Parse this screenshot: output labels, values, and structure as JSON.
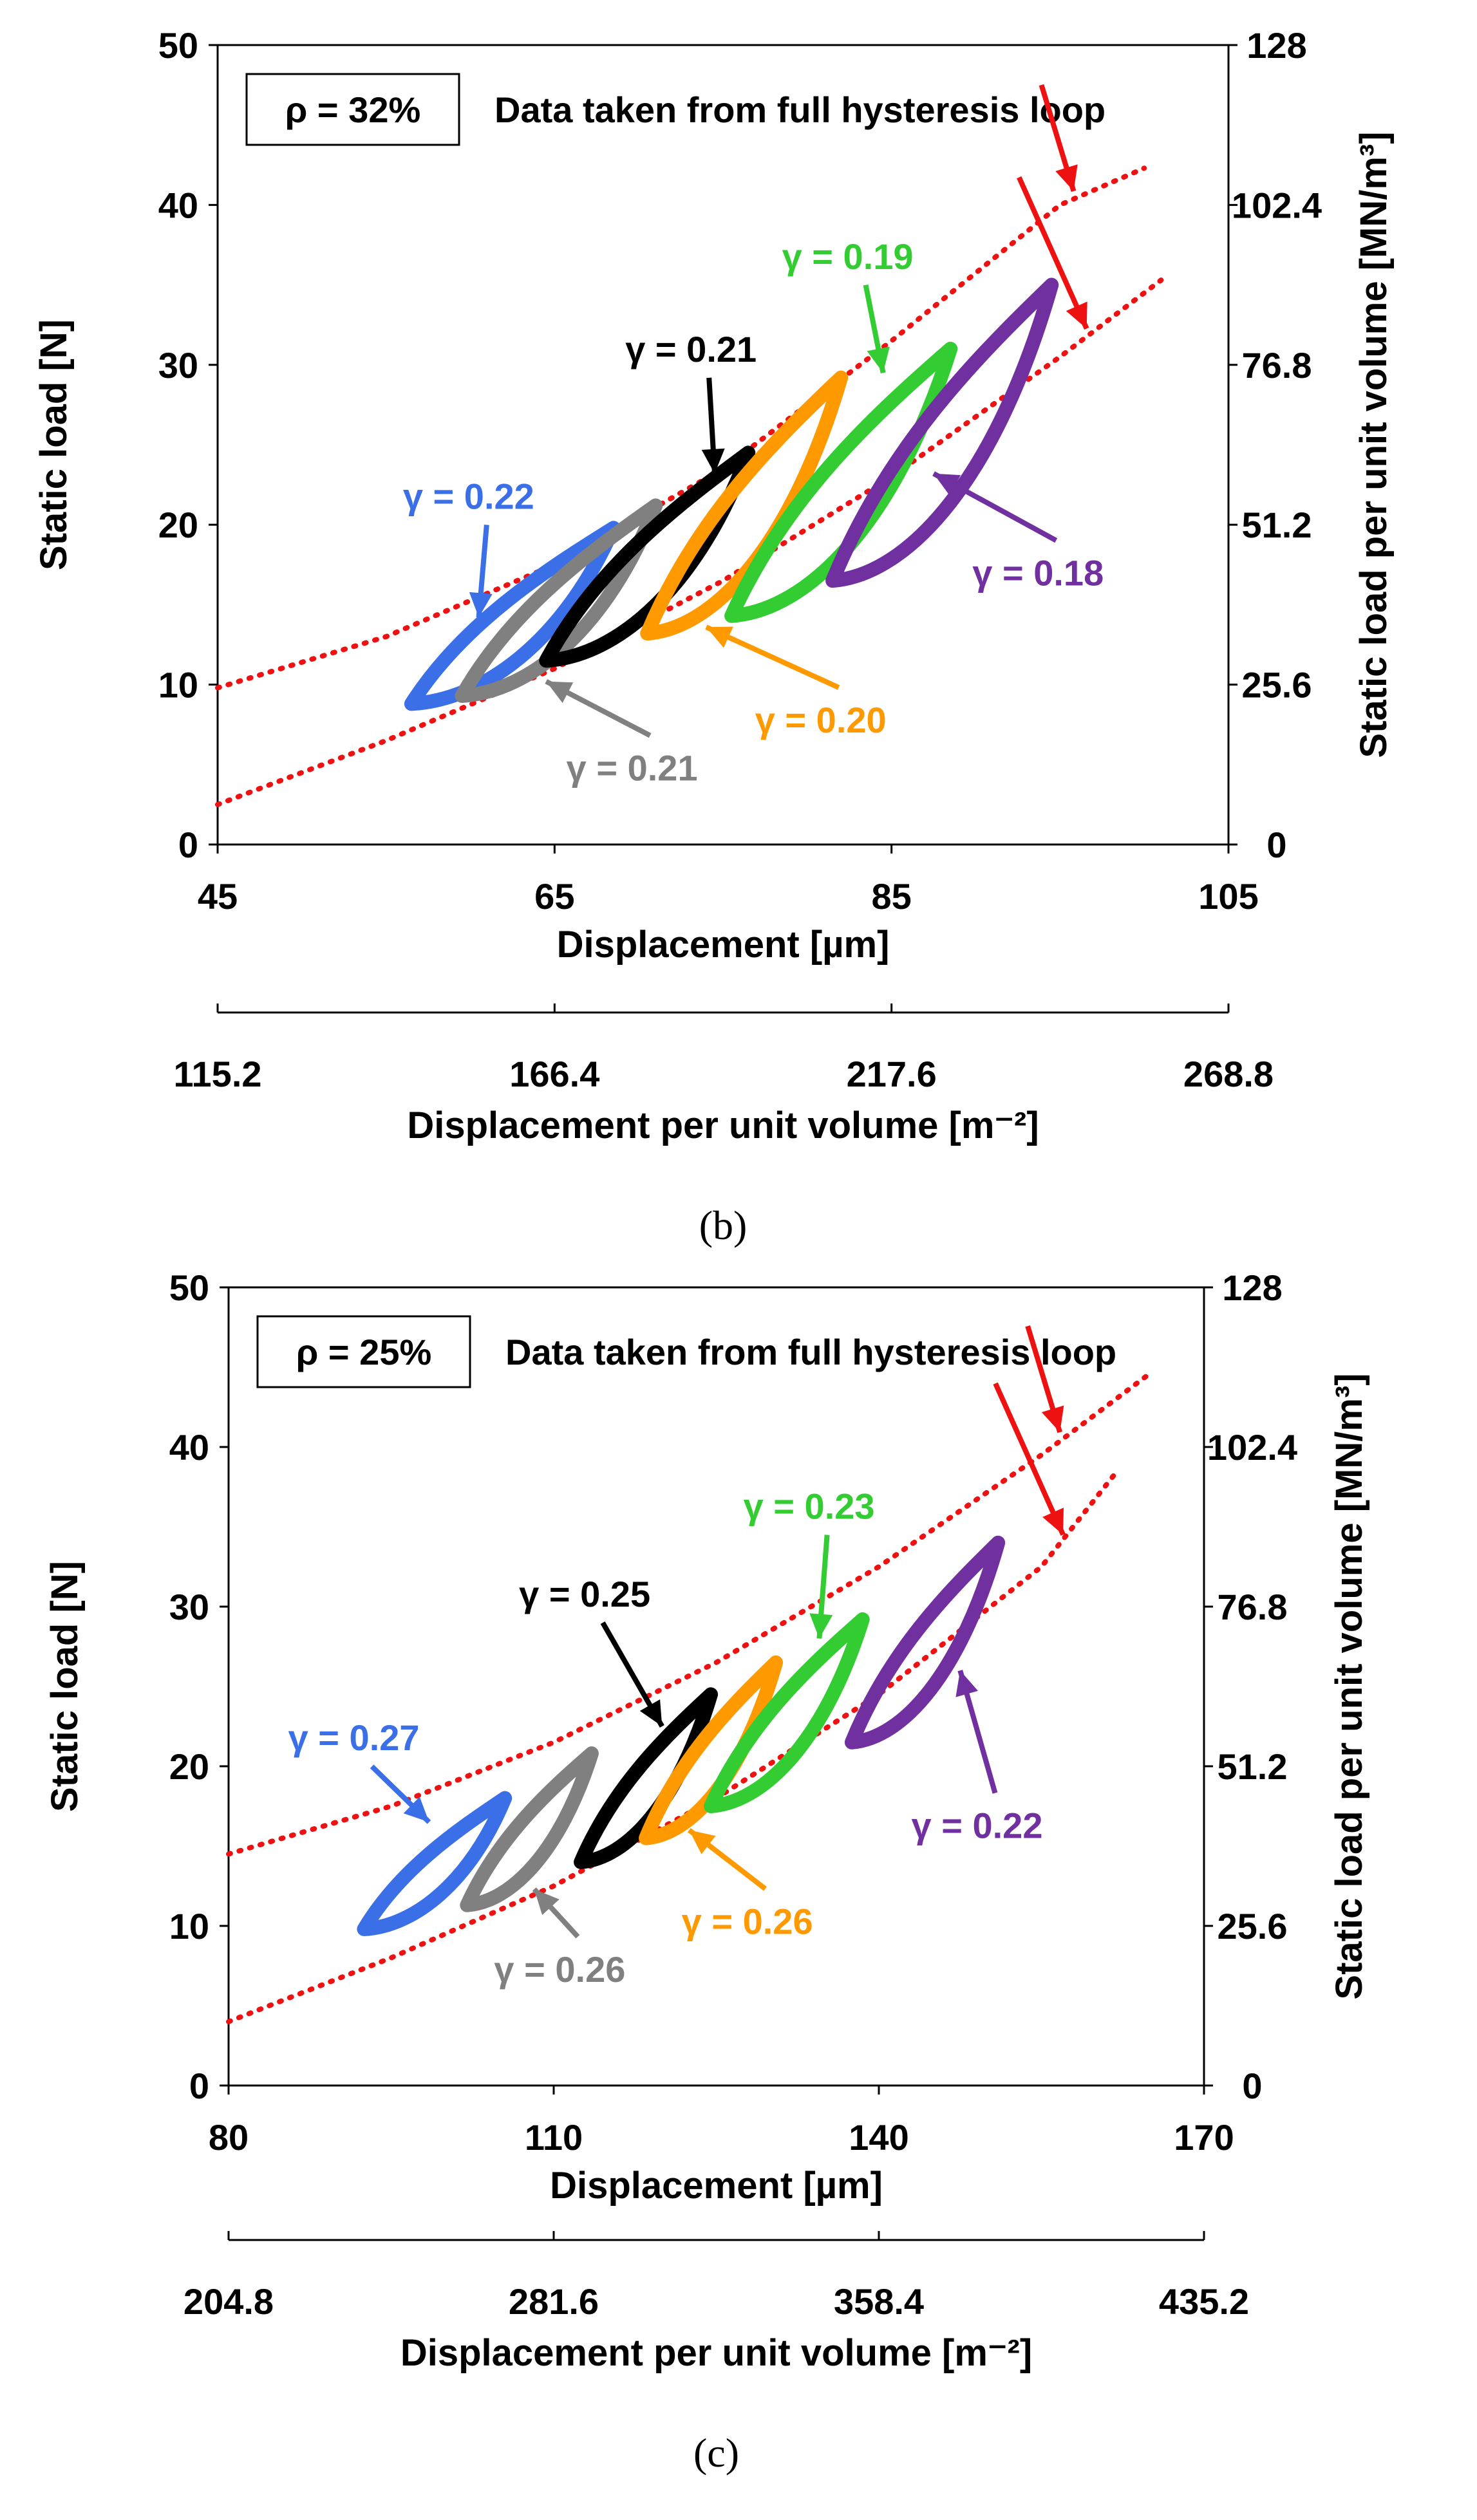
{
  "chart_data": [
    {
      "type": "scatter",
      "panel_label": "(b)",
      "porosity_label": "ρ = 32%",
      "note": "Data taken from full hysteresis loop",
      "xlabel": "Displacement [µm]",
      "ylabel": "Static load [N]",
      "y2label": "Static load per unit volume [MN/m³]",
      "x2label": "Displacement per unit volume [m⁻²]",
      "xlim": [
        45,
        105
      ],
      "ylim": [
        0,
        50
      ],
      "xticks": [
        "45",
        "65",
        "85",
        "105"
      ],
      "yticks": [
        "0",
        "10",
        "20",
        "30",
        "40",
        "50"
      ],
      "y2ticks": [
        "0",
        "25.6",
        "51.2",
        "76.8",
        "102.4",
        "128"
      ],
      "x2ticks": [
        {
          "label": "115.2",
          "x": 45
        },
        {
          "label": "166.4",
          "x": 65
        },
        {
          "label": "217.6",
          "x": 85
        },
        {
          "label": "268.8",
          "x": 105
        }
      ],
      "bound_curves": [
        {
          "name": "upper bound",
          "x": [
            45,
            55,
            65,
            75,
            85,
            95,
            100
          ],
          "y": [
            9.8,
            13.0,
            17.5,
            23.5,
            31.5,
            40.0,
            42.3
          ]
        },
        {
          "name": "lower bound",
          "x": [
            45,
            55,
            65,
            75,
            85,
            95,
            101
          ],
          "y": [
            2.5,
            6.5,
            11.0,
            16.5,
            23.0,
            30.5,
            35.3
          ]
        }
      ],
      "series": [
        {
          "name": "γ = 0.22",
          "color": "#3b6fe8",
          "label": "γ = 0.22",
          "x_range": [
            56.5,
            68.5
          ],
          "y_range": [
            8.8,
            19.8
          ],
          "label_pos": [
            56,
            21
          ],
          "arrow_to": [
            60.5,
            14.2
          ]
        },
        {
          "name": "γ = 0.21 (grey)",
          "color": "#808080",
          "label": "γ = 0.21",
          "x_range": [
            59.5,
            71.0
          ],
          "y_range": [
            9.3,
            21.2
          ],
          "label_pos": [
            65.7,
            4.0
          ],
          "arrow_to": [
            64.5,
            10.2
          ]
        },
        {
          "name": "γ = 0.21 (black)",
          "color": "#000000",
          "label": "γ = 0.21",
          "x_range": [
            64.5,
            76.5
          ],
          "y_range": [
            11.5,
            24.5
          ],
          "label_pos": [
            69.2,
            30.2
          ],
          "arrow_to": [
            74.5,
            23.2
          ]
        },
        {
          "name": "γ = 0.20",
          "color": "#ff9900",
          "label": "γ = 0.20",
          "x_range": [
            70.5,
            82.0
          ],
          "y_range": [
            13.2,
            29.2
          ],
          "label_pos": [
            76.9,
            7.0
          ],
          "arrow_to": [
            74.0,
            13.6
          ]
        },
        {
          "name": "γ = 0.19",
          "color": "#33cc33",
          "label": "γ = 0.19",
          "x_range": [
            75.5,
            88.5
          ],
          "y_range": [
            14.3,
            31.0
          ],
          "label_pos": [
            78.5,
            36.0
          ],
          "arrow_to": [
            84.5,
            29.5
          ]
        },
        {
          "name": "γ = 0.18",
          "color": "#7030a0",
          "label": "γ = 0.18",
          "x_range": [
            81.5,
            94.5
          ],
          "y_range": [
            16.5,
            35.0
          ],
          "label_pos": [
            89.8,
            16.2
          ],
          "arrow_to": [
            87.5,
            23.2
          ]
        }
      ]
    },
    {
      "type": "scatter",
      "panel_label": "(c)",
      "porosity_label": "ρ = 25%",
      "note": "Data taken from full hysteresis loop",
      "xlabel": "Displacement [µm]",
      "ylabel": "Static load [N]",
      "y2label": "Static load per unit volume [MN/m³]",
      "x2label": "Displacement per unit volume [m⁻²]",
      "xlim": [
        80,
        170
      ],
      "ylim": [
        0,
        50
      ],
      "xticks": [
        "80",
        "110",
        "140",
        "170"
      ],
      "yticks": [
        "0",
        "10",
        "20",
        "30",
        "40",
        "50"
      ],
      "y2ticks": [
        "0",
        "25.6",
        "51.2",
        "76.8",
        "102.4",
        "128"
      ],
      "x2ticks": [
        {
          "label": "204.8",
          "x": 80
        },
        {
          "label": "281.6",
          "x": 110
        },
        {
          "label": "358.4",
          "x": 140
        },
        {
          "label": "435.2",
          "x": 170
        }
      ],
      "bound_curves": [
        {
          "name": "upper bound",
          "x": [
            80,
            95,
            110,
            125,
            140,
            155,
            165
          ],
          "y": [
            14.5,
            17.5,
            21.5,
            26.5,
            32.5,
            39.5,
            44.6
          ]
        },
        {
          "name": "lower bound",
          "x": [
            80,
            95,
            110,
            125,
            140,
            155,
            162
          ],
          "y": [
            4.0,
            8.0,
            12.5,
            18.0,
            24.5,
            32.5,
            38.5
          ]
        }
      ],
      "series": [
        {
          "name": "γ = 0.27",
          "color": "#3b6fe8",
          "label": "γ = 0.27",
          "x_range": [
            92.5,
            105.5
          ],
          "y_range": [
            9.8,
            18.0
          ],
          "label_pos": [
            85.5,
            21.0
          ],
          "arrow_to": [
            98.5,
            16.5
          ]
        },
        {
          "name": "γ = 0.26 (grey)",
          "color": "#808080",
          "label": "γ = 0.26",
          "x_range": [
            102.0,
            113.5
          ],
          "y_range": [
            11.3,
            20.8
          ],
          "label_pos": [
            104.5,
            6.5
          ],
          "arrow_to": [
            108.2,
            12.3
          ]
        },
        {
          "name": "γ = 0.25",
          "color": "#000000",
          "label": "γ = 0.25",
          "x_range": [
            112.5,
            124.5
          ],
          "y_range": [
            14.0,
            24.5
          ],
          "label_pos": [
            106.8,
            30.0
          ],
          "arrow_to": [
            120.0,
            22.5
          ]
        },
        {
          "name": "γ = 0.26 (orange)",
          "color": "#ff9900",
          "label": "γ = 0.26",
          "x_range": [
            118.5,
            130.5
          ],
          "y_range": [
            15.5,
            26.5
          ],
          "label_pos": [
            121.8,
            9.5
          ],
          "arrow_to": [
            122.5,
            16.0
          ]
        },
        {
          "name": "γ = 0.23",
          "color": "#33cc33",
          "label": "γ = 0.23",
          "x_range": [
            124.5,
            138.5
          ],
          "y_range": [
            17.5,
            29.2
          ],
          "label_pos": [
            127.5,
            35.5
          ],
          "arrow_to": [
            134.5,
            28.0
          ]
        },
        {
          "name": "γ = 0.22",
          "color": "#7030a0",
          "label": "γ = 0.22",
          "x_range": [
            137.5,
            151.0
          ],
          "y_range": [
            21.5,
            34.0
          ],
          "label_pos": [
            143.0,
            15.5
          ],
          "arrow_to": [
            147.5,
            26.0
          ]
        }
      ]
    }
  ]
}
